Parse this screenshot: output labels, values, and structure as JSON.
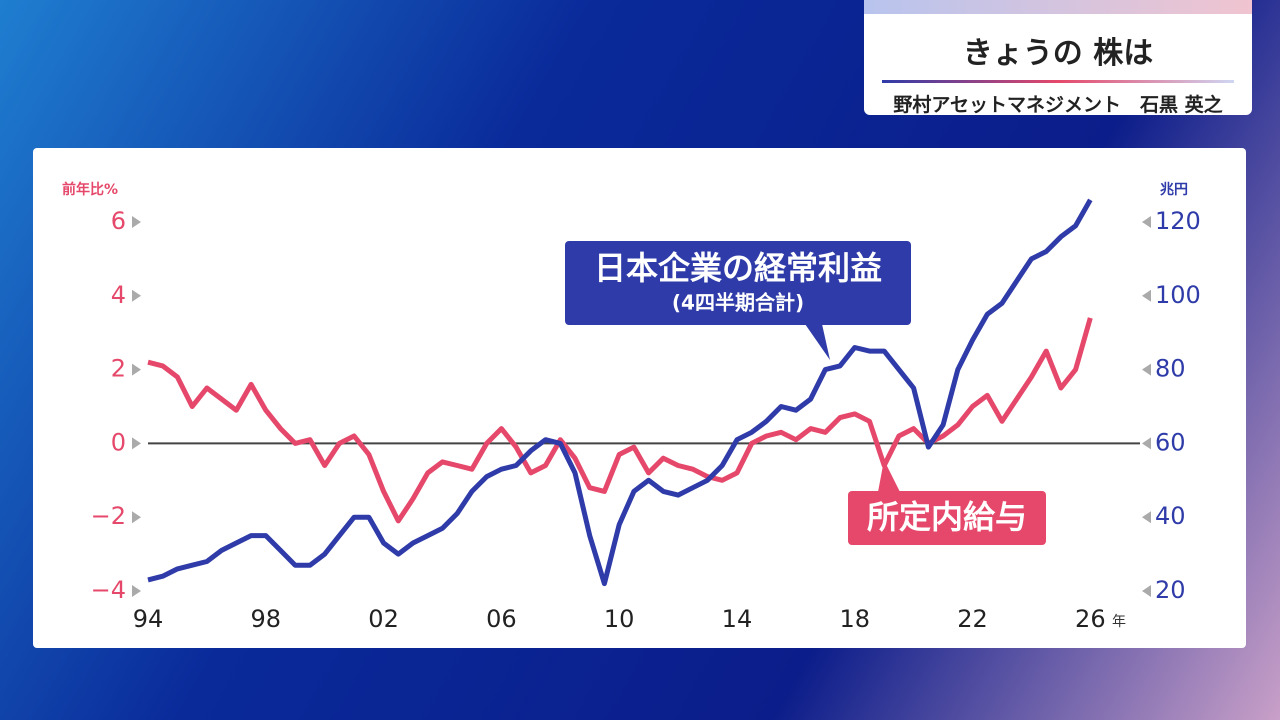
{
  "header": {
    "title": "きょうの 株は",
    "subtitle": "野村アセットマネジメント　石黒 英之"
  },
  "chart_data": {
    "type": "line",
    "y_label": "前年比%",
    "y2_label": "兆円",
    "x_label": "年",
    "annotations": [
      "日本企業の経常利益",
      "(4四半期合計)",
      "所定内給与"
    ],
    "x": [
      1994,
      1994.5,
      1995,
      1995.5,
      1996,
      1996.5,
      1997,
      1997.5,
      1998,
      1998.5,
      1999,
      1999.5,
      2000,
      2000.5,
      2001,
      2001.5,
      2002,
      2002.5,
      2003,
      2003.5,
      2004,
      2004.5,
      2005,
      2005.5,
      2006,
      2006.5,
      2007,
      2007.5,
      2008,
      2008.5,
      2009,
      2009.5,
      2010,
      2010.5,
      2011,
      2011.5,
      2012,
      2012.5,
      2013,
      2013.5,
      2014,
      2014.5,
      2015,
      2015.5,
      2016,
      2016.5,
      2017,
      2017.5,
      2018,
      2018.5,
      2019,
      2019.5,
      2020,
      2020.5,
      2021,
      2021.5,
      2022,
      2022.5,
      2023,
      2023.5,
      2024,
      2024.5,
      2025,
      2025.5,
      2026
    ],
    "xlim": [
      1994,
      2026.6
    ],
    "xticks": [
      {
        "value": 1994,
        "label": "94"
      },
      {
        "value": 1998,
        "label": "98"
      },
      {
        "value": 2002,
        "label": "02"
      },
      {
        "value": 2006,
        "label": "06"
      },
      {
        "value": 2010,
        "label": "10"
      },
      {
        "value": 2014,
        "label": "14"
      },
      {
        "value": 2018,
        "label": "18"
      },
      {
        "value": 2022,
        "label": "22"
      },
      {
        "value": 2026,
        "label": "26"
      }
    ],
    "ylim": [
      -4,
      6
    ],
    "yticks": [
      {
        "value": -4,
        "label": "−4"
      },
      {
        "value": -2,
        "label": "−2"
      },
      0,
      2,
      4,
      6
    ],
    "y2lim": [
      20,
      120
    ],
    "y2ticks": [
      20,
      40,
      60,
      80,
      100,
      120
    ],
    "series": [
      {
        "name": "所定内給与",
        "color": "#e5486a",
        "values": [
          2.2,
          2.1,
          1.8,
          1.0,
          1.5,
          1.2,
          0.9,
          1.6,
          0.9,
          0.4,
          0.0,
          0.1,
          -0.6,
          0.0,
          0.2,
          -0.3,
          -1.3,
          -2.1,
          -1.5,
          -0.8,
          -0.5,
          -0.6,
          -0.7,
          0.0,
          0.4,
          -0.1,
          -0.8,
          -0.6,
          0.1,
          -0.4,
          -1.2,
          -1.3,
          -0.3,
          -0.1,
          -0.8,
          -0.4,
          -0.6,
          -0.7,
          -0.9,
          -1.0,
          -0.8,
          0.0,
          0.2,
          0.3,
          0.1,
          0.4,
          0.3,
          0.7,
          0.8,
          0.6,
          -0.6,
          0.2,
          0.4,
          0.0,
          0.2,
          0.5,
          1.0,
          1.3,
          0.6,
          1.2,
          1.8,
          2.5,
          1.5,
          2.0,
          3.4
        ]
      },
      {
        "name": "日本企業の経常利益",
        "color": "#2e3ba8",
        "axis": "y2",
        "values": [
          23,
          24,
          26,
          27,
          28,
          31,
          33,
          35,
          35,
          31,
          27,
          27,
          30,
          35,
          40,
          40,
          33,
          30,
          33,
          35,
          37,
          41,
          47,
          51,
          53,
          54,
          58,
          61,
          60,
          52,
          35,
          22,
          38,
          47,
          50,
          47,
          46,
          48,
          50,
          54,
          61,
          63,
          66,
          70,
          69,
          72,
          80,
          81,
          86,
          85,
          85,
          80,
          75,
          59,
          65,
          80,
          88,
          95,
          98,
          104,
          110,
          112,
          116,
          119,
          126
        ]
      }
    ]
  }
}
